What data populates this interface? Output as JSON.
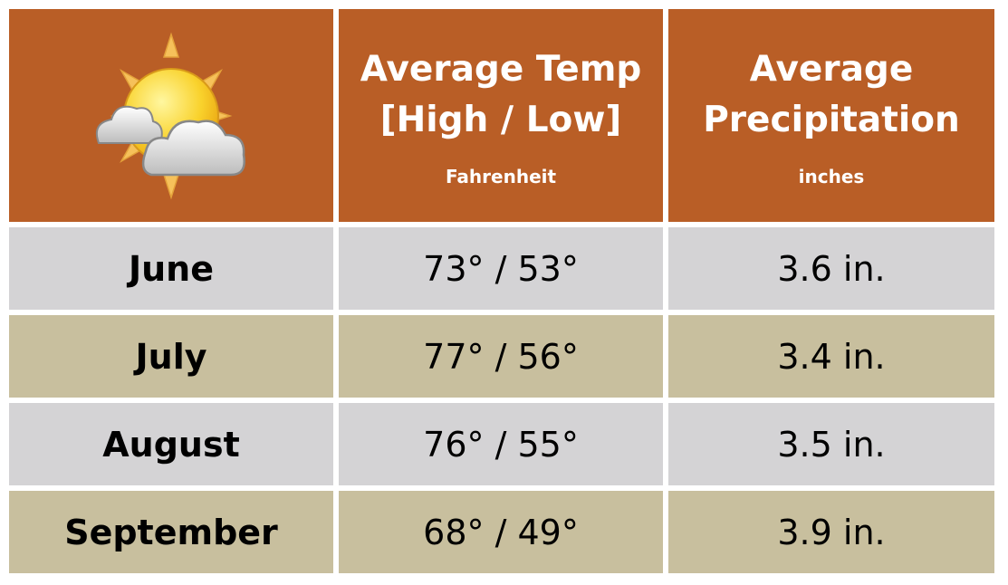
{
  "header": {
    "columns": [
      {
        "title_lines": [
          "Average Temp",
          "[High / Low]"
        ],
        "unit": "Fahrenheit"
      },
      {
        "title_lines": [
          "Average",
          "Precipitation"
        ],
        "unit": "inches"
      }
    ]
  },
  "table": {
    "rows": [
      [
        "June",
        "73° / 53°",
        "3.6 in."
      ],
      [
        "July",
        "77° / 56°",
        "3.4 in."
      ],
      [
        "August",
        "76° / 55°",
        "3.5 in."
      ],
      [
        "September",
        "68° / 49°",
        "3.9 in."
      ]
    ]
  }
}
